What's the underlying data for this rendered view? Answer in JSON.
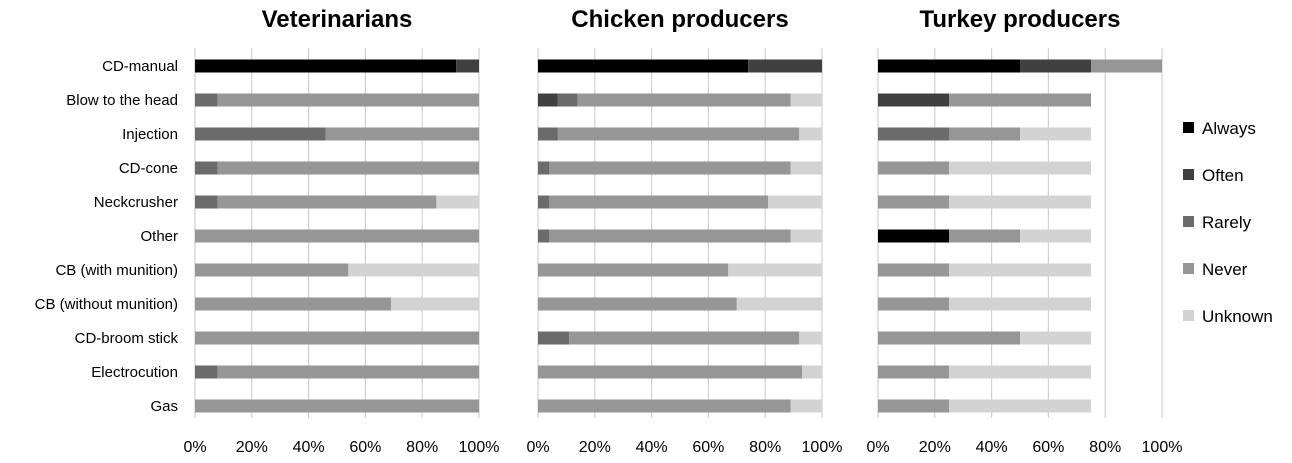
{
  "chart_data": {
    "type": "bar",
    "stacked": true,
    "orientation": "horizontal",
    "categories": [
      "CD-manual",
      "Blow to the head",
      "Injection",
      "CD-cone",
      "Neckcrusher",
      "Other",
      "CB (with munition)",
      "CB (without munition)",
      "CD-broom stick",
      "Electrocution",
      "Gas"
    ],
    "legend": {
      "position": "right",
      "entries": [
        {
          "name": "Always",
          "color": "#000000"
        },
        {
          "name": "Often",
          "color": "#404040"
        },
        {
          "name": "Rarely",
          "color": "#6b6b6b"
        },
        {
          "name": "Never",
          "color": "#969696"
        },
        {
          "name": "Unknown",
          "color": "#d3d3d3"
        }
      ]
    },
    "x_ticks": [
      "0%",
      "20%",
      "40%",
      "60%",
      "80%",
      "100%"
    ],
    "xlim": [
      0,
      100
    ],
    "grid": "vertical",
    "panels": [
      {
        "title": "Veterinarians",
        "series": [
          {
            "name": "Always",
            "values": [
              92,
              0,
              0,
              0,
              0,
              0,
              0,
              0,
              0,
              0,
              0
            ]
          },
          {
            "name": "Often",
            "values": [
              8,
              0,
              0,
              0,
              0,
              0,
              0,
              0,
              0,
              0,
              0
            ]
          },
          {
            "name": "Rarely",
            "values": [
              0,
              8,
              46,
              8,
              8,
              0,
              0,
              0,
              0,
              8,
              0
            ]
          },
          {
            "name": "Never",
            "values": [
              0,
              92,
              54,
              92,
              77,
              100,
              54,
              69,
              100,
              92,
              100
            ]
          },
          {
            "name": "Unknown",
            "values": [
              0,
              0,
              0,
              0,
              15,
              0,
              46,
              31,
              0,
              0,
              0
            ]
          }
        ]
      },
      {
        "title": "Chicken producers",
        "series": [
          {
            "name": "Always",
            "values": [
              74,
              0,
              0,
              0,
              0,
              0,
              0,
              0,
              0,
              0,
              0
            ]
          },
          {
            "name": "Often",
            "values": [
              26,
              7,
              0,
              0,
              0,
              0,
              0,
              0,
              0,
              0,
              0
            ]
          },
          {
            "name": "Rarely",
            "values": [
              0,
              7,
              7,
              4,
              4,
              4,
              0,
              0,
              11,
              0,
              0
            ]
          },
          {
            "name": "Never",
            "values": [
              0,
              75,
              85,
              85,
              77,
              85,
              67,
              70,
              81,
              93,
              89
            ]
          },
          {
            "name": "Unknown",
            "values": [
              0,
              11,
              8,
              11,
              19,
              11,
              33,
              30,
              8,
              7,
              11
            ]
          }
        ]
      },
      {
        "title": "Turkey producers",
        "series": [
          {
            "name": "Always",
            "values": [
              50,
              0,
              0,
              0,
              0,
              25,
              0,
              0,
              0,
              0,
              0
            ]
          },
          {
            "name": "Often",
            "values": [
              25,
              25,
              0,
              0,
              0,
              0,
              0,
              0,
              0,
              0,
              0
            ]
          },
          {
            "name": "Rarely",
            "values": [
              0,
              0,
              25,
              0,
              0,
              0,
              0,
              0,
              0,
              0,
              0
            ]
          },
          {
            "name": "Never",
            "values": [
              25,
              50,
              25,
              25,
              25,
              25,
              25,
              25,
              50,
              25,
              25
            ]
          },
          {
            "name": "Unknown",
            "values": [
              0,
              0,
              25,
              50,
              50,
              25,
              50,
              50,
              25,
              50,
              50
            ]
          }
        ]
      }
    ]
  }
}
